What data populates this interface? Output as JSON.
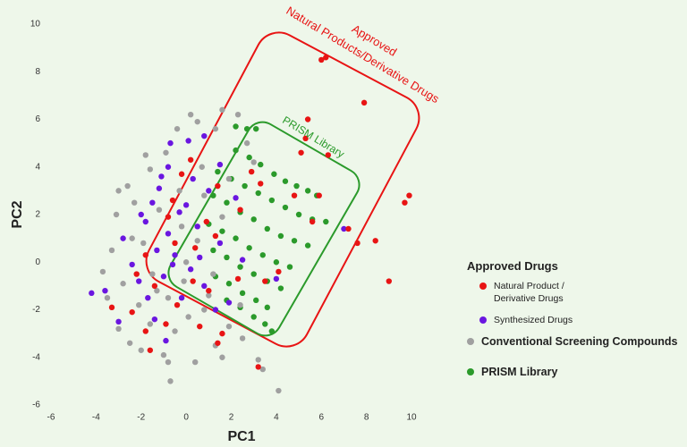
{
  "chart_data": {
    "type": "scatter",
    "xlabel": "PC1",
    "ylabel": "PC2",
    "xlim": [
      -6,
      10
    ],
    "ylim": [
      -6,
      10
    ],
    "xticks": [
      -6,
      -4,
      -2,
      0,
      2,
      4,
      6,
      8,
      10
    ],
    "yticks": [
      -6,
      -4,
      -2,
      0,
      2,
      4,
      6,
      8,
      10
    ],
    "legend_title": "Approved Drugs",
    "annotations": [
      "Approved",
      "Natural Products/Derivative Drugs",
      "PRISM Library"
    ],
    "series": [
      {
        "name": "Natural Product / Derivative Drugs",
        "color": "#e81414",
        "x": [
          6.2,
          6.0,
          7.9,
          5.4,
          6.3,
          9.9,
          9.7,
          8.4,
          7.6,
          9.0,
          7.2,
          5.6,
          5.1,
          5.9,
          4.8,
          3.3,
          2.4,
          1.4,
          -0.2,
          0.2,
          -0.6,
          0.9,
          1.3,
          0.4,
          -0.5,
          -1.8,
          -2.2,
          -1.4,
          -0.9,
          -2.4,
          -3.3,
          -1.8,
          0.6,
          1.6,
          1.4,
          3.2,
          1.0,
          2.3,
          -0.8,
          3.5,
          4.1,
          0.3,
          -0.4,
          5.3,
          2.9,
          -1.6
        ],
        "y": [
          8.6,
          8.5,
          6.7,
          6.0,
          4.5,
          2.8,
          2.5,
          0.9,
          0.8,
          -0.8,
          1.4,
          1.7,
          4.6,
          2.8,
          2.8,
          3.3,
          2.2,
          3.2,
          3.7,
          4.3,
          2.6,
          1.7,
          1.1,
          0.6,
          0.8,
          0.3,
          -0.5,
          -1.0,
          -2.6,
          -2.1,
          -1.9,
          -2.9,
          -2.7,
          -3.0,
          -3.4,
          -4.4,
          -1.2,
          -0.7,
          1.9,
          -0.8,
          -0.4,
          -0.8,
          -1.8,
          5.2,
          3.8,
          -3.7
        ]
      },
      {
        "name": "Synthesized Drugs",
        "color": "#6a16e0",
        "x": [
          -4.2,
          -3.6,
          -2.1,
          -1.8,
          -1.5,
          -1.2,
          -0.8,
          -0.7,
          0.1,
          0.8,
          1.5,
          -0.3,
          -0.8,
          -1.3,
          -0.5,
          0.2,
          0.8,
          1.5,
          2.2,
          1.9,
          -1.4,
          -0.2,
          -2.4,
          -1.0,
          0.5,
          1.0,
          -2.0,
          -0.9,
          0.0,
          0.6,
          -1.7,
          2.5,
          -2.8,
          1.3,
          -0.6,
          0.3,
          -1.1,
          7.0,
          4.0,
          -3.0
        ],
        "y": [
          -1.3,
          -1.2,
          -0.8,
          1.7,
          2.5,
          3.1,
          4.0,
          5.0,
          5.1,
          5.3,
          4.1,
          2.1,
          1.2,
          0.5,
          0.3,
          -0.3,
          -1.0,
          0.8,
          2.7,
          -1.7,
          -2.4,
          -1.5,
          -0.1,
          -0.6,
          1.5,
          3.0,
          2.0,
          -3.3,
          2.4,
          0.2,
          -1.5,
          0.1,
          1.0,
          -2.0,
          -0.1,
          3.5,
          3.6,
          1.4,
          -0.7,
          -2.5
        ]
      },
      {
        "name": "Conventional Screening Compounds",
        "color": "#a0a0a0",
        "x": [
          0.2,
          1.6,
          2.3,
          -0.4,
          0.5,
          1.3,
          -1.8,
          -3.0,
          -3.1,
          -2.6,
          -1.6,
          -0.9,
          -2.4,
          -3.3,
          -3.7,
          -3.5,
          -3.0,
          -2.5,
          -2.0,
          -1.0,
          -0.8,
          -0.7,
          0.4,
          1.3,
          1.6,
          3.2,
          3.4,
          4.1,
          2.5,
          -1.5,
          -0.8,
          0.1,
          0.8,
          1.2,
          0.5,
          -0.2,
          -1.2,
          0.8,
          1.9,
          2.7,
          3.0,
          -0.3,
          -2.1,
          -1.6,
          -0.1,
          1.6,
          2.4,
          -2.8,
          0.7,
          -1.9,
          1.9,
          -0.5,
          -2.3,
          0.0,
          1.0,
          -1.3
        ],
        "y": [
          6.2,
          6.4,
          6.2,
          5.6,
          5.9,
          5.6,
          4.5,
          3.0,
          2.0,
          3.2,
          3.9,
          4.6,
          1.0,
          0.5,
          -0.4,
          -1.5,
          -2.8,
          -3.4,
          -3.7,
          -3.9,
          -4.2,
          -5.0,
          -4.2,
          -3.5,
          -4.0,
          -4.1,
          -4.5,
          -5.4,
          -3.2,
          -0.5,
          -1.5,
          -2.3,
          -2.0,
          -0.5,
          0.9,
          1.5,
          2.2,
          2.8,
          3.5,
          5.0,
          4.2,
          3.0,
          -1.8,
          -2.6,
          -0.8,
          1.9,
          -1.8,
          -0.9,
          4.0,
          0.8,
          -2.7,
          -2.9,
          2.5,
          0.0,
          -1.4,
          -1.2
        ]
      },
      {
        "name": "PRISM Library",
        "color": "#2b9a2b",
        "x": [
          2.2,
          2.8,
          3.3,
          3.9,
          4.4,
          4.9,
          5.4,
          5.8,
          1.4,
          2.0,
          2.6,
          3.2,
          3.8,
          4.4,
          5.0,
          5.6,
          6.2,
          1.2,
          1.8,
          2.4,
          3.0,
          3.6,
          4.2,
          4.8,
          5.4,
          1.0,
          1.6,
          2.2,
          2.8,
          3.4,
          4.0,
          4.6,
          1.2,
          1.8,
          2.4,
          3.0,
          3.6,
          4.2,
          1.3,
          1.9,
          2.5,
          3.1,
          3.6,
          1.8,
          2.4,
          3.0,
          3.5,
          3.8,
          2.2,
          2.7,
          3.1
        ],
        "y": [
          4.7,
          4.4,
          4.1,
          3.7,
          3.4,
          3.2,
          3.0,
          2.8,
          3.8,
          3.5,
          3.2,
          2.9,
          2.6,
          2.3,
          2.0,
          1.8,
          1.7,
          2.8,
          2.5,
          2.1,
          1.8,
          1.4,
          1.1,
          0.9,
          0.7,
          1.6,
          1.3,
          1.0,
          0.6,
          0.3,
          0.0,
          -0.2,
          0.5,
          0.2,
          -0.2,
          -0.5,
          -0.8,
          -1.1,
          -0.6,
          -0.9,
          -1.3,
          -1.6,
          -1.9,
          -1.6,
          -1.9,
          -2.3,
          -2.6,
          -2.9,
          5.7,
          5.6,
          5.6
        ]
      }
    ]
  }
}
